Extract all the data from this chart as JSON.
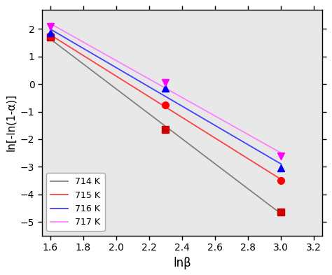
{
  "series": [
    {
      "label": "714 K",
      "linecolor": "#808080",
      "marker": "s",
      "markercolor": "#cc0000",
      "x": [
        1.6,
        2.3,
        3.0
      ],
      "y": [
        1.7,
        -1.65,
        -4.65
      ]
    },
    {
      "label": "715 K",
      "linecolor": "#ff4040",
      "marker": "o",
      "markercolor": "#ff0000",
      "x": [
        1.6,
        2.3,
        3.0
      ],
      "y": [
        1.75,
        -0.75,
        -3.5
      ]
    },
    {
      "label": "716 K",
      "linecolor": "#4040ff",
      "marker": "^",
      "markercolor": "#0000ff",
      "x": [
        1.6,
        2.3,
        3.0
      ],
      "y": [
        1.85,
        -0.15,
        -3.05
      ]
    },
    {
      "label": "717 K",
      "linecolor": "#ff80ff",
      "marker": "v",
      "markercolor": "#ff00ff",
      "x": [
        1.6,
        2.3,
        3.0
      ],
      "y": [
        2.1,
        0.05,
        -2.6
      ]
    }
  ],
  "xlabel": "lnβ",
  "ylabel": "ln[-ln(1-α)]",
  "xlim": [
    1.55,
    3.25
  ],
  "ylim": [
    -5.5,
    2.7
  ],
  "xticks": [
    1.6,
    1.8,
    2.0,
    2.2,
    2.4,
    2.6,
    2.8,
    3.0,
    3.2
  ],
  "yticks": [
    -5,
    -4,
    -3,
    -2,
    -1,
    0,
    1,
    2
  ],
  "panel_color": "#e8e8e8",
  "background_color": "#ffffff",
  "legend_loc": "lower left",
  "figure_width": 4.74,
  "figure_height": 3.93,
  "dpi": 100
}
